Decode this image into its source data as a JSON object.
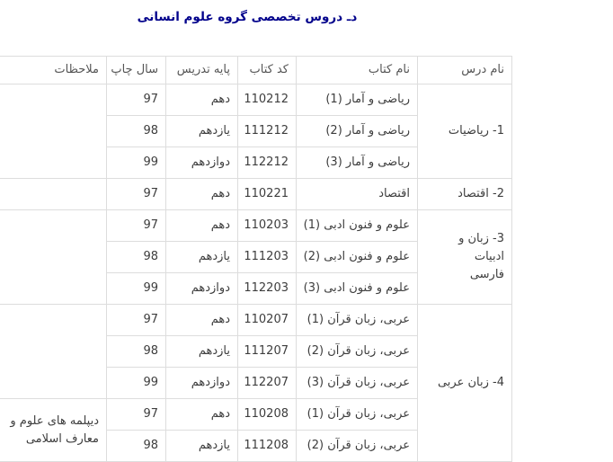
{
  "page": {
    "title": "دـ دروس تخصصی گروه علوم انسانی"
  },
  "colors": {
    "title_navy": "#00008B",
    "table_border": "#dddddd",
    "cell_text": "#3d3d3d"
  },
  "table": {
    "headers": {
      "course": "نام درس",
      "book": "نام کتاب",
      "code": "کد کتاب",
      "grade": "پایه تدریس",
      "year": "سال چاپ",
      "notes": "ملاحظات"
    },
    "groups": [
      {
        "course": "1- ریاضیات",
        "notes": "",
        "rows": [
          {
            "book": "ریاضی و آمار (1)",
            "code": "110212",
            "grade": "دهم",
            "year": "97"
          },
          {
            "book": "ریاضی و آمار (2)",
            "code": "111212",
            "grade": "یازدهم",
            "year": "98"
          },
          {
            "book": "ریاضی و آمار (3)",
            "code": "112212",
            "grade": "دوازدهم",
            "year": "99"
          }
        ]
      },
      {
        "course": "2- اقتصاد",
        "notes": "",
        "rows": [
          {
            "book": "اقتصاد",
            "code": "110221",
            "grade": "دهم",
            "year": "97"
          }
        ]
      },
      {
        "course": "3- زبان و ادبیات\nفارسی",
        "notes": "",
        "rows": [
          {
            "book": "علوم و فنون ادبی (1)",
            "code": "110203",
            "grade": "دهم",
            "year": "97"
          },
          {
            "book": "علوم و فنون ادبی (2)",
            "code": "111203",
            "grade": "یازدهم",
            "year": "98"
          },
          {
            "book": "علوم و فنون ادبی (3)",
            "code": "112203",
            "grade": "دوازدهم",
            "year": "99"
          }
        ]
      },
      {
        "course": "4- زبان عربی",
        "notes_upper": "",
        "notes_lower": "دیپلمه های علوم و\nمعارف اسلامی",
        "rows": [
          {
            "book": "عربی، زبان قرآن (1)",
            "code": "110207",
            "grade": "دهم",
            "year": "97"
          },
          {
            "book": "عربی، زبان قرآن (2)",
            "code": "111207",
            "grade": "یازدهم",
            "year": "98"
          },
          {
            "book": "عربی، زبان قرآن (3)",
            "code": "112207",
            "grade": "دوازدهم",
            "year": "99"
          },
          {
            "book": "عربی، زبان قرآن (1)",
            "code": "110208",
            "grade": "دهم",
            "year": "97"
          },
          {
            "book": "عربی، زبان قرآن (2)",
            "code": "111208",
            "grade": "یازدهم",
            "year": "98"
          }
        ]
      }
    ]
  }
}
